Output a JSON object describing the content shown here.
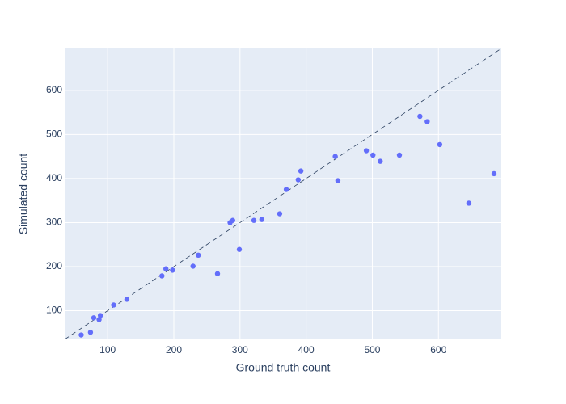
{
  "chart_data": {
    "type": "scatter",
    "xlabel": "Ground truth count",
    "ylabel": "Simulated count",
    "x": [
      60,
      74,
      79,
      87,
      89,
      109,
      129,
      182,
      188,
      198,
      229,
      237,
      266,
      285,
      289,
      299,
      321,
      333,
      360,
      370,
      388,
      392,
      444,
      448,
      491,
      501,
      512,
      541,
      572,
      583,
      602,
      646,
      684
    ],
    "series": [
      {
        "color": "#636efa",
        "values": [
          45,
          51,
          84,
          80,
          89,
          113,
          126,
          179,
          195,
          192,
          201,
          226,
          184,
          300,
          305,
          239,
          305,
          307,
          320,
          375,
          397,
          417,
          450,
          395,
          463,
          453,
          439,
          453,
          541,
          529,
          477,
          344,
          411
        ]
      }
    ],
    "xlim": [
      35,
      695
    ],
    "ylim": [
      35,
      695
    ],
    "xticks": [
      100,
      200,
      300,
      400,
      500,
      600
    ],
    "yticks": [
      100,
      200,
      300,
      400,
      500,
      600
    ],
    "grid": true
  }
}
